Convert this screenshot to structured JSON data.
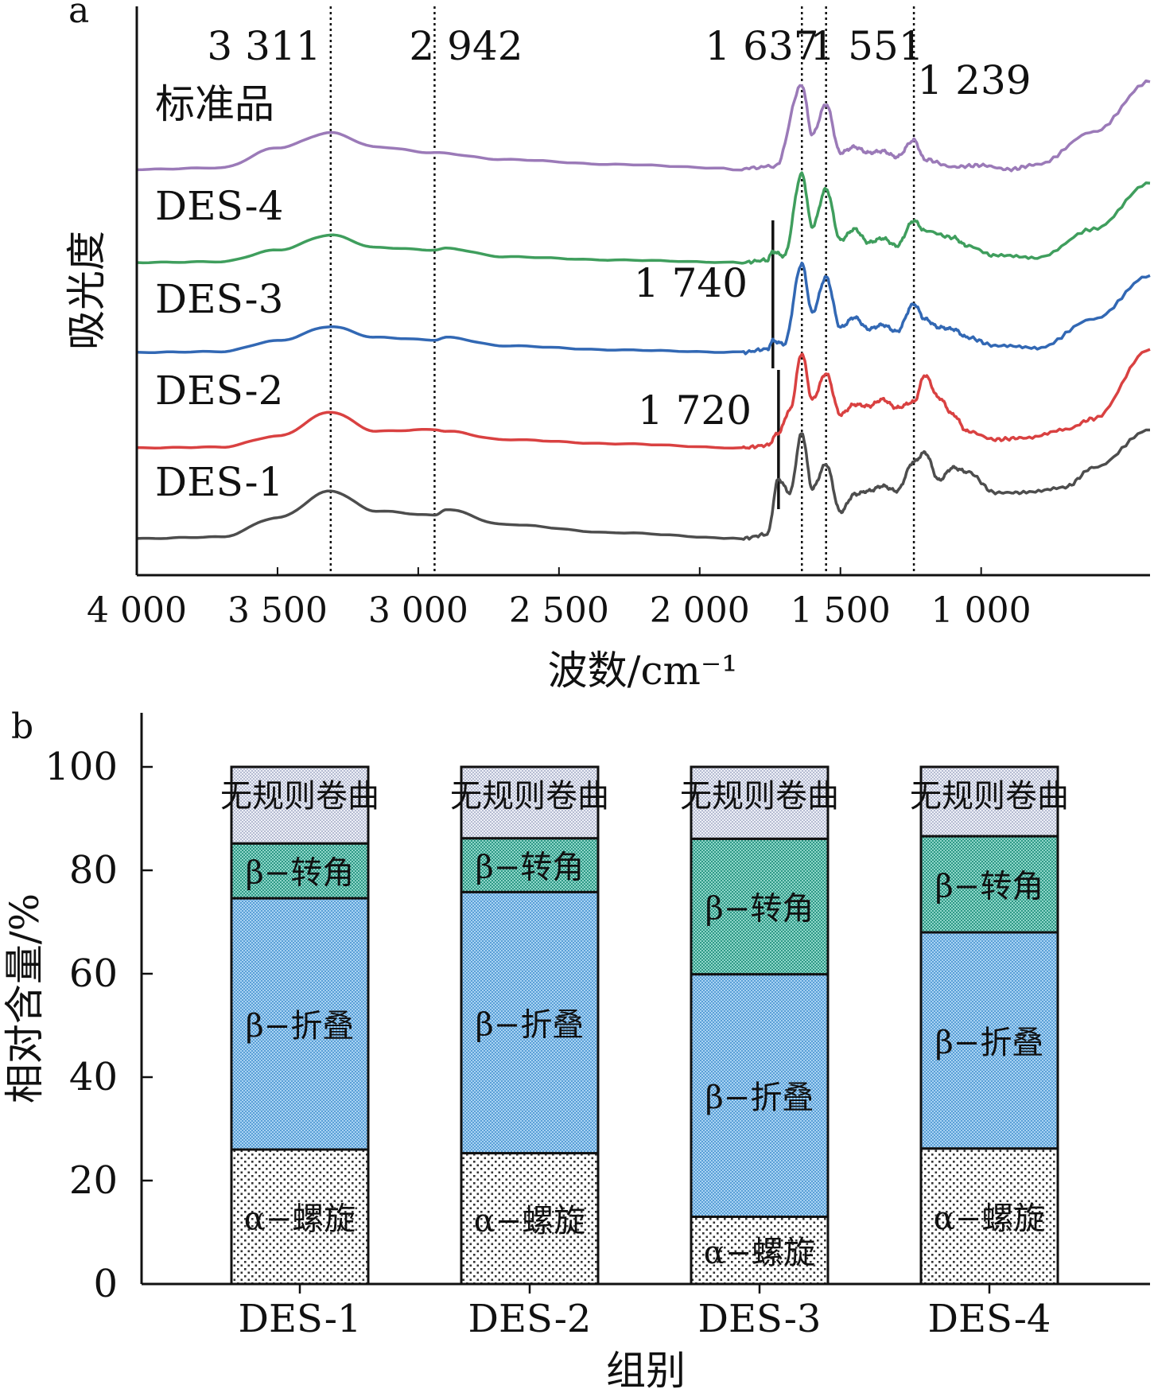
{
  "chart_data": [
    {
      "panel": "a",
      "type": "line",
      "xlabel": "波数/cm⁻¹",
      "ylabel": "吸光度",
      "x_reversed": true,
      "xlim": [
        4000,
        400
      ],
      "x_ticks": [
        4000,
        3500,
        3000,
        2500,
        2000,
        1500,
        1000
      ],
      "x_tick_labels": [
        "4 000",
        "3 500",
        "3 000",
        "2 500",
        "2 000",
        "1 500",
        "1 000"
      ],
      "y_ticks_shown": false,
      "dashed_markers": [
        {
          "x": 3311,
          "label": "3 311"
        },
        {
          "x": 2942,
          "label": "2 942"
        },
        {
          "x": 1637,
          "label": "1 637"
        },
        {
          "x": 1551,
          "label": "1 551"
        },
        {
          "x": 1239,
          "label": "1 239"
        }
      ],
      "solid_markers": [
        {
          "x": 1740,
          "label": "1 740"
        },
        {
          "x": 1720,
          "label": "1 720"
        }
      ],
      "series": [
        {
          "name": "标准品",
          "color": "#9b7ab8",
          "points": [
            [
              4000,
              1.0
            ],
            [
              3700,
              1.02
            ],
            [
              3500,
              1.26
            ],
            [
              3311,
              1.44
            ],
            [
              3150,
              1.27
            ],
            [
              2942,
              1.2
            ],
            [
              2700,
              1.12
            ],
            [
              2300,
              1.06
            ],
            [
              1850,
              1.01
            ],
            [
              1730,
              1.04
            ],
            [
              1637,
              2.01
            ],
            [
              1600,
              1.42
            ],
            [
              1551,
              1.78
            ],
            [
              1500,
              1.2
            ],
            [
              1450,
              1.27
            ],
            [
              1400,
              1.2
            ],
            [
              1350,
              1.22
            ],
            [
              1300,
              1.15
            ],
            [
              1239,
              1.35
            ],
            [
              1200,
              1.12
            ],
            [
              1100,
              1.03
            ],
            [
              1000,
              1.05
            ],
            [
              900,
              1.0
            ],
            [
              800,
              1.06
            ],
            [
              600,
              1.45
            ],
            [
              400,
              2.05
            ]
          ]
        },
        {
          "name": "DES-4",
          "color": "#3f9e5d",
          "points": [
            [
              4000,
              1.0
            ],
            [
              3700,
              1.01
            ],
            [
              3500,
              1.15
            ],
            [
              3311,
              1.33
            ],
            [
              3150,
              1.18
            ],
            [
              2942,
              1.15
            ],
            [
              2900,
              1.17
            ],
            [
              2700,
              1.07
            ],
            [
              2300,
              1.03
            ],
            [
              1850,
              1.0
            ],
            [
              1760,
              1.03
            ],
            [
              1740,
              1.13
            ],
            [
              1700,
              1.08
            ],
            [
              1637,
              2.06
            ],
            [
              1600,
              1.43
            ],
            [
              1551,
              1.88
            ],
            [
              1500,
              1.27
            ],
            [
              1450,
              1.4
            ],
            [
              1400,
              1.24
            ],
            [
              1350,
              1.29
            ],
            [
              1300,
              1.2
            ],
            [
              1239,
              1.5
            ],
            [
              1200,
              1.38
            ],
            [
              1100,
              1.3
            ],
            [
              1050,
              1.2
            ],
            [
              950,
              1.08
            ],
            [
              800,
              1.06
            ],
            [
              600,
              1.4
            ],
            [
              400,
              1.95
            ]
          ]
        },
        {
          "name": "DES-3",
          "color": "#3268b4",
          "points": [
            [
              4000,
              1.0
            ],
            [
              3700,
              1.01
            ],
            [
              3500,
              1.14
            ],
            [
              3311,
              1.31
            ],
            [
              3150,
              1.18
            ],
            [
              2942,
              1.15
            ],
            [
              2900,
              1.18
            ],
            [
              2700,
              1.08
            ],
            [
              2300,
              1.03
            ],
            [
              1850,
              1.0
            ],
            [
              1760,
              1.04
            ],
            [
              1740,
              1.14
            ],
            [
              1700,
              1.1
            ],
            [
              1637,
              2.06
            ],
            [
              1600,
              1.48
            ],
            [
              1551,
              1.9
            ],
            [
              1500,
              1.3
            ],
            [
              1450,
              1.42
            ],
            [
              1400,
              1.28
            ],
            [
              1350,
              1.33
            ],
            [
              1300,
              1.25
            ],
            [
              1239,
              1.58
            ],
            [
              1200,
              1.4
            ],
            [
              1150,
              1.3
            ],
            [
              1100,
              1.28
            ],
            [
              1050,
              1.18
            ],
            [
              950,
              1.08
            ],
            [
              800,
              1.05
            ],
            [
              600,
              1.4
            ],
            [
              400,
              1.92
            ]
          ]
        },
        {
          "name": "DES-2",
          "color": "#d94141",
          "points": [
            [
              4000,
              1.0
            ],
            [
              3700,
              1.01
            ],
            [
              3500,
              1.14
            ],
            [
              3311,
              1.43
            ],
            [
              3150,
              1.2
            ],
            [
              2942,
              1.22
            ],
            [
              2900,
              1.2
            ],
            [
              2700,
              1.1
            ],
            [
              2300,
              1.05
            ],
            [
              1850,
              1.0
            ],
            [
              1760,
              1.03
            ],
            [
              1720,
              1.18
            ],
            [
              1680,
              1.45
            ],
            [
              1637,
              2.13
            ],
            [
              1600,
              1.58
            ],
            [
              1551,
              1.89
            ],
            [
              1500,
              1.4
            ],
            [
              1450,
              1.52
            ],
            [
              1400,
              1.5
            ],
            [
              1350,
              1.58
            ],
            [
              1300,
              1.48
            ],
            [
              1239,
              1.55
            ],
            [
              1200,
              1.87
            ],
            [
              1150,
              1.6
            ],
            [
              1100,
              1.4
            ],
            [
              1050,
              1.2
            ],
            [
              950,
              1.1
            ],
            [
              850,
              1.12
            ],
            [
              700,
              1.22
            ],
            [
              600,
              1.35
            ],
            [
              400,
              2.18
            ]
          ]
        },
        {
          "name": "DES-1",
          "color": "#4d4d4d",
          "points": [
            [
              4000,
              1.0
            ],
            [
              3700,
              1.02
            ],
            [
              3500,
              1.25
            ],
            [
              3311,
              1.57
            ],
            [
              3150,
              1.33
            ],
            [
              2942,
              1.28
            ],
            [
              2900,
              1.35
            ],
            [
              2700,
              1.17
            ],
            [
              2300,
              1.07
            ],
            [
              1850,
              1.0
            ],
            [
              1760,
              1.05
            ],
            [
              1720,
              1.71
            ],
            [
              1680,
              1.55
            ],
            [
              1637,
              2.26
            ],
            [
              1600,
              1.6
            ],
            [
              1551,
              1.89
            ],
            [
              1500,
              1.32
            ],
            [
              1450,
              1.53
            ],
            [
              1400,
              1.57
            ],
            [
              1350,
              1.63
            ],
            [
              1300,
              1.57
            ],
            [
              1239,
              1.92
            ],
            [
              1200,
              2.03
            ],
            [
              1150,
              1.7
            ],
            [
              1100,
              1.85
            ],
            [
              1050,
              1.8
            ],
            [
              950,
              1.55
            ],
            [
              850,
              1.55
            ],
            [
              700,
              1.62
            ],
            [
              600,
              1.85
            ],
            [
              400,
              2.3
            ]
          ]
        }
      ]
    },
    {
      "panel": "b",
      "type": "bar",
      "stacked": true,
      "categories": [
        "DES-1",
        "DES-2",
        "DES-3",
        "DES-4"
      ],
      "xlabel": "组别",
      "ylabel": "相对含量/%",
      "ylim": [
        0,
        110
      ],
      "y_ticks": [
        0,
        20,
        40,
        60,
        80,
        100
      ],
      "series": [
        {
          "name": "α-螺旋",
          "label": "α−螺旋",
          "values": [
            26,
            25.3,
            13,
            26.2
          ],
          "color": "#ffffff",
          "pattern": "dots"
        },
        {
          "name": "β-折叠",
          "label": "β−折叠",
          "values": [
            48.6,
            50.5,
            46.9,
            41.8
          ],
          "color": "#8fc3ec",
          "pattern": "mesh"
        },
        {
          "name": "β-转角",
          "label": "β−转角",
          "values": [
            10.6,
            10.4,
            26.2,
            18.6
          ],
          "color": "#4fb5a6",
          "pattern": "mesh"
        },
        {
          "name": "无规则卷曲",
          "label": "无规则卷曲",
          "values": [
            14.8,
            13.8,
            13.9,
            13.4
          ],
          "color": "#d7dbe8",
          "pattern": "mesh"
        }
      ]
    }
  ],
  "panels": {
    "a": {
      "tag": "a"
    },
    "b": {
      "tag": "b"
    }
  }
}
